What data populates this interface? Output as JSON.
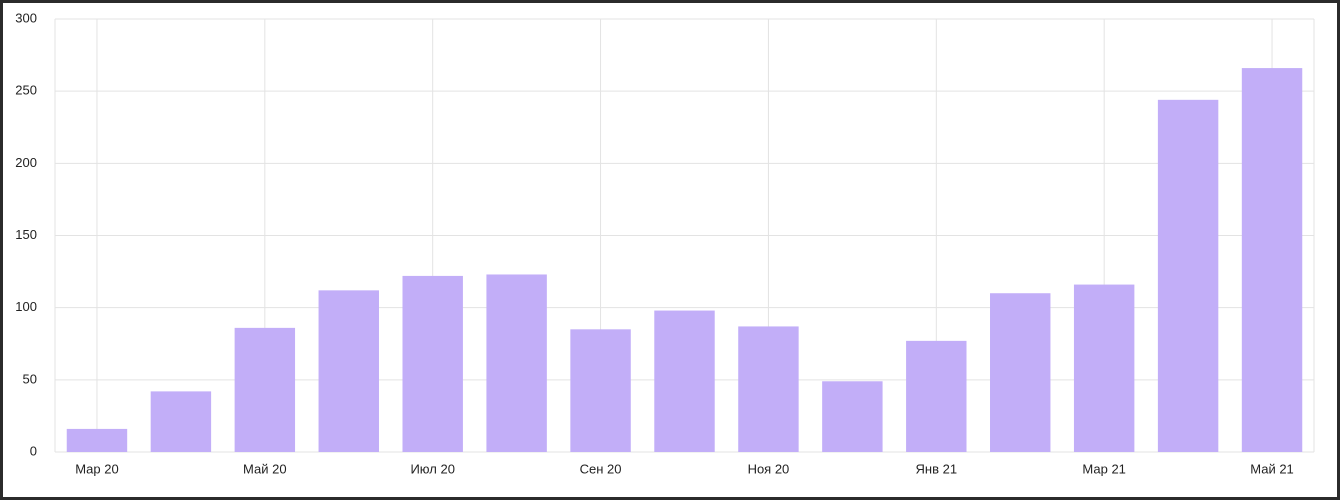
{
  "chart_data": {
    "type": "bar",
    "categories": [
      "Мар 20",
      null,
      "Май 20",
      null,
      "Июл 20",
      null,
      "Сен 20",
      null,
      "Ноя 20",
      null,
      "Янв 21",
      null,
      "Мар 21",
      null,
      "Май 21"
    ],
    "values": [
      16,
      42,
      86,
      112,
      122,
      123,
      85,
      98,
      87,
      49,
      77,
      110,
      116,
      244,
      266
    ],
    "color": "#c2aef8",
    "ylim": [
      0,
      300
    ],
    "yticks": [
      0,
      50,
      100,
      150,
      200,
      250,
      300
    ],
    "grid": true
  }
}
